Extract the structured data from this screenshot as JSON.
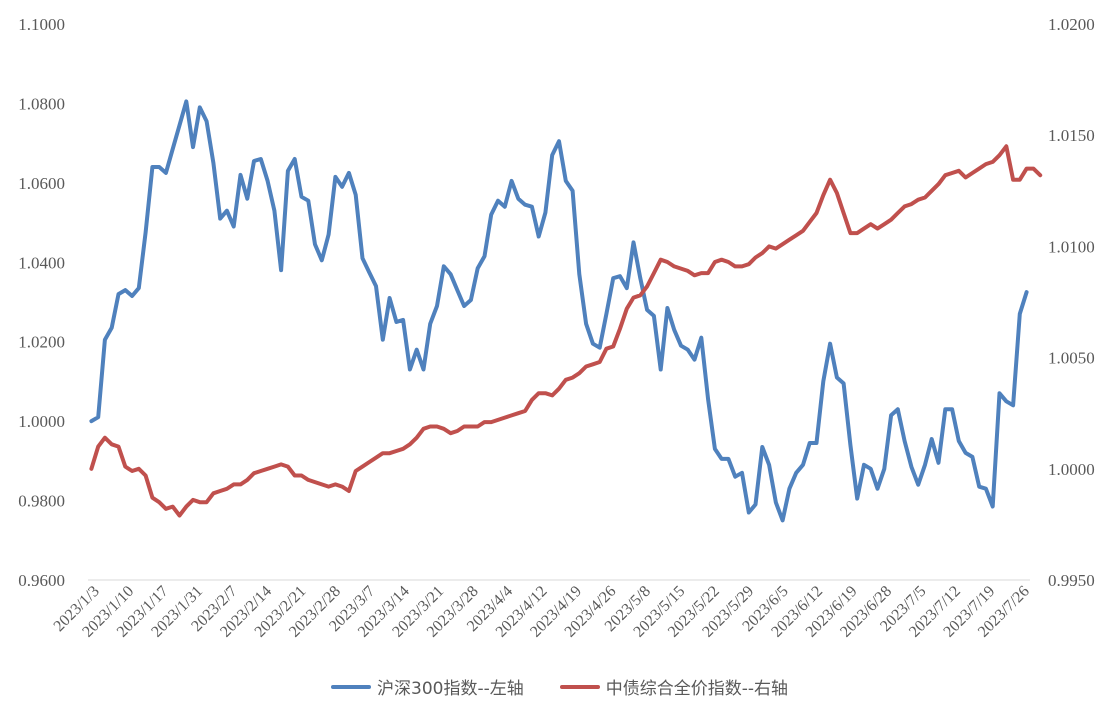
{
  "chart_data": {
    "type": "line",
    "x_tick_labels": [
      "2023/1/3",
      "2023/1/10",
      "2023/1/17",
      "2023/1/31",
      "2023/2/7",
      "2023/2/14",
      "2023/2/21",
      "2023/2/28",
      "2023/3/7",
      "2023/3/14",
      "2023/3/21",
      "2023/3/28",
      "2023/4/4",
      "2023/4/12",
      "2023/4/19",
      "2023/4/26",
      "2023/5/8",
      "2023/5/15",
      "2023/5/22",
      "2023/5/29",
      "2023/6/5",
      "2023/6/12",
      "2023/6/19",
      "2023/6/28",
      "2023/7/5",
      "2023/7/12",
      "2023/7/19",
      "2023/7/26"
    ],
    "y_left": {
      "ylim": [
        0.96,
        1.1
      ],
      "ticks": [
        "0.9600",
        "0.9800",
        "1.0000",
        "1.0200",
        "1.0400",
        "1.0600",
        "1.0800",
        "1.1000"
      ]
    },
    "y_right": {
      "ylim": [
        0.995,
        1.02
      ],
      "ticks": [
        "0.9950",
        "1.0000",
        "1.0050",
        "1.0100",
        "1.0150",
        "1.0200"
      ]
    },
    "grid": false,
    "legend_position": "bottom",
    "series": [
      {
        "name": "沪深300指数--左轴",
        "axis": "left",
        "color": "#4F81BD",
        "values": [
          1.0,
          1.001,
          1.0205,
          1.0235,
          1.032,
          1.033,
          1.0315,
          1.0335,
          1.0475,
          1.064,
          1.064,
          1.0625,
          1.0685,
          1.0745,
          1.0805,
          1.069,
          1.079,
          1.0755,
          1.065,
          1.051,
          1.053,
          1.049,
          1.062,
          1.056,
          1.0655,
          1.066,
          1.0605,
          1.053,
          1.038,
          1.063,
          1.066,
          1.0565,
          1.0555,
          1.0445,
          1.0405,
          1.047,
          1.0615,
          1.059,
          1.0625,
          1.057,
          1.041,
          1.0375,
          1.034,
          1.0205,
          1.031,
          1.025,
          1.0255,
          1.013,
          1.018,
          1.013,
          1.0245,
          1.029,
          1.039,
          1.037,
          1.033,
          1.029,
          1.0305,
          1.0385,
          1.0415,
          1.052,
          1.0555,
          1.054,
          1.0605,
          1.056,
          1.0545,
          1.054,
          1.0465,
          1.0525,
          1.067,
          1.0705,
          1.0605,
          1.058,
          1.037,
          1.0245,
          1.0195,
          1.0185,
          1.027,
          1.036,
          1.0365,
          1.0335,
          1.045,
          1.036,
          1.028,
          1.0265,
          1.013,
          1.0285,
          1.023,
          1.019,
          1.018,
          1.0155,
          1.021,
          1.0055,
          0.993,
          0.9905,
          0.9905,
          0.986,
          0.987,
          0.977,
          0.979,
          0.9935,
          0.989,
          0.9795,
          0.975,
          0.983,
          0.987,
          0.989,
          0.9945,
          0.9945,
          1.01,
          1.0195,
          1.011,
          1.0095,
          0.994,
          0.9805,
          0.989,
          0.988,
          0.983,
          0.988,
          1.0015,
          1.003,
          0.995,
          0.9885,
          0.984,
          0.989,
          0.9955,
          0.9895,
          1.003,
          1.003,
          0.995,
          0.992,
          0.991,
          0.9835,
          0.983,
          0.9785,
          1.007,
          1.005,
          1.004,
          1.027,
          1.0325
        ]
      },
      {
        "name": "中债综合全价指数--右轴",
        "axis": "right",
        "color": "#C0504D",
        "values": [
          1.0,
          1.001,
          1.0014,
          1.0011,
          1.001,
          1.0001,
          0.9999,
          1.0,
          0.9997,
          0.9987,
          0.9985,
          0.9982,
          0.9983,
          0.9979,
          0.9983,
          0.9986,
          0.9985,
          0.9985,
          0.9989,
          0.999,
          0.9991,
          0.9993,
          0.9993,
          0.9995,
          0.9998,
          0.9999,
          1.0,
          1.0001,
          1.0002,
          1.0001,
          0.9997,
          0.9997,
          0.9995,
          0.9994,
          0.9993,
          0.9992,
          0.9993,
          0.9992,
          0.999,
          0.9999,
          1.0001,
          1.0003,
          1.0005,
          1.0007,
          1.0007,
          1.0008,
          1.0009,
          1.0011,
          1.0014,
          1.0018,
          1.0019,
          1.0019,
          1.0018,
          1.0016,
          1.0017,
          1.0019,
          1.0019,
          1.0019,
          1.0021,
          1.0021,
          1.0022,
          1.0023,
          1.0024,
          1.0025,
          1.0026,
          1.0031,
          1.0034,
          1.0034,
          1.0033,
          1.0036,
          1.004,
          1.0041,
          1.0043,
          1.0046,
          1.0047,
          1.0048,
          1.0054,
          1.0055,
          1.0063,
          1.0072,
          1.0077,
          1.0078,
          1.0082,
          1.0088,
          1.0094,
          1.0093,
          1.0091,
          1.009,
          1.0089,
          1.0087,
          1.0088,
          1.0088,
          1.0093,
          1.0094,
          1.0093,
          1.0091,
          1.0091,
          1.0092,
          1.0095,
          1.0097,
          1.01,
          1.0099,
          1.0101,
          1.0103,
          1.0105,
          1.0107,
          1.0111,
          1.0115,
          1.0123,
          1.013,
          1.0124,
          1.0115,
          1.0106,
          1.0106,
          1.0108,
          1.011,
          1.0108,
          1.011,
          1.0112,
          1.0115,
          1.0118,
          1.0119,
          1.0121,
          1.0122,
          1.0125,
          1.0128,
          1.0132,
          1.0133,
          1.0134,
          1.0131,
          1.0133,
          1.0135,
          1.0137,
          1.0138,
          1.0141,
          1.0145,
          1.013,
          1.013,
          1.0135,
          1.0135,
          1.0132
        ]
      }
    ]
  }
}
